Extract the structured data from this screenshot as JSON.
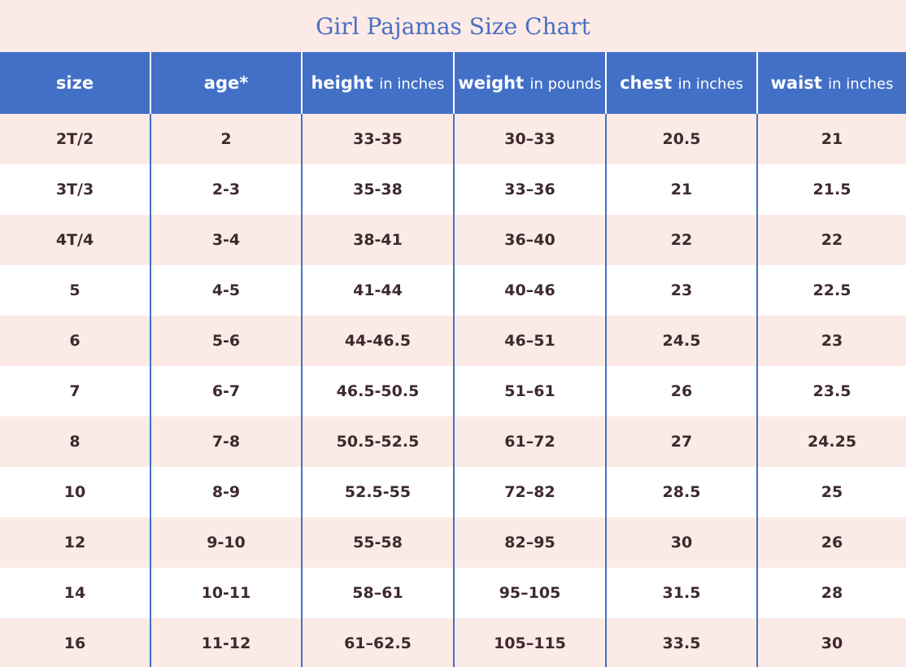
{
  "title": "Girl Pajamas Size Chart",
  "colors": {
    "header_bg": "#4270c6",
    "title_text": "#4a6fc4",
    "row_pink": "#fbeae5",
    "row_white": "#ffffff",
    "cell_text": "#3e2a2e"
  },
  "headers": [
    {
      "label": "size",
      "unit": ""
    },
    {
      "label": "age*",
      "unit": ""
    },
    {
      "label": "height",
      "unit": "in inches"
    },
    {
      "label": "weight",
      "unit": "in pounds"
    },
    {
      "label": "chest",
      "unit": "in inches"
    },
    {
      "label": "waist",
      "unit": "in inches"
    }
  ],
  "rows": [
    [
      "2T/2",
      "2",
      "33-35",
      "30–33",
      "20.5",
      "21"
    ],
    [
      "3T/3",
      "2-3",
      "35-38",
      "33–36",
      "21",
      "21.5"
    ],
    [
      "4T/4",
      "3-4",
      "38-41",
      "36–40",
      "22",
      "22"
    ],
    [
      "5",
      "4-5",
      "41-44",
      "40–46",
      "23",
      "22.5"
    ],
    [
      "6",
      "5-6",
      "44-46.5",
      "46–51",
      "24.5",
      "23"
    ],
    [
      "7",
      "6-7",
      "46.5-50.5",
      "51–61",
      "26",
      "23.5"
    ],
    [
      "8",
      "7-8",
      "50.5-52.5",
      "61–72",
      "27",
      "24.25"
    ],
    [
      "10",
      "8-9",
      "52.5-55",
      "72–82",
      "28.5",
      "25"
    ],
    [
      "12",
      "9-10",
      "55-58",
      "82–95",
      "30",
      "26"
    ],
    [
      "14",
      "10-11",
      "58–61",
      "95–105",
      "31.5",
      "28"
    ],
    [
      "16",
      "11-12",
      "61–62.5",
      "105–115",
      "33.5",
      "30"
    ]
  ]
}
